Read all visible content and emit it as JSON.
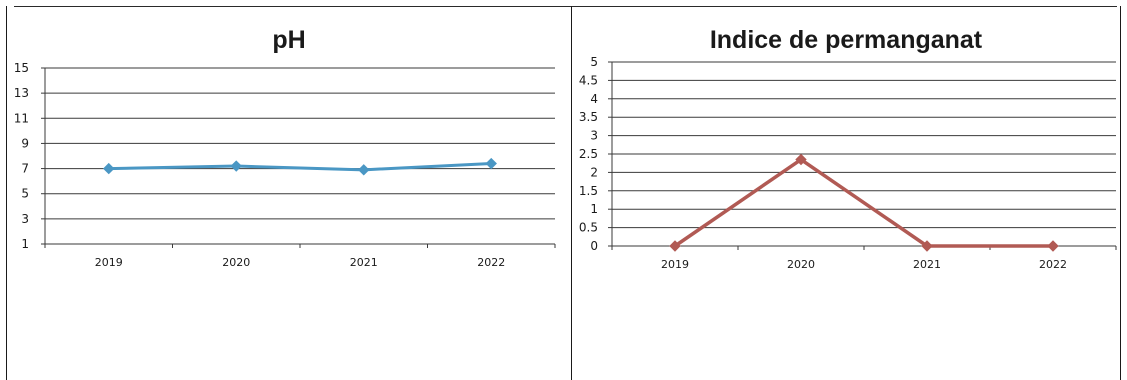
{
  "chart_data": [
    {
      "type": "line",
      "title": "pH",
      "categories": [
        "2019",
        "2020",
        "2021",
        "2022"
      ],
      "series": [
        {
          "values": [
            7.0,
            7.2,
            6.9,
            7.4
          ],
          "color": "#4a97c4"
        }
      ],
      "yticks": [
        "15",
        "13",
        "11",
        "9",
        "7",
        "5",
        "3",
        "1"
      ],
      "ylim": [
        1,
        15
      ],
      "grid": true
    },
    {
      "type": "line",
      "title": "Indice de permanganat",
      "categories": [
        "2019",
        "2020",
        "2021",
        "2022"
      ],
      "series": [
        {
          "values": [
            0,
            2.35,
            0,
            0
          ],
          "color": "#b15a54"
        }
      ],
      "yticks": [
        "5",
        "4.5",
        "4",
        "3.5",
        "3",
        "2.5",
        "2",
        "1.5",
        "1",
        "0.5",
        "0"
      ],
      "ylim": [
        0,
        5
      ],
      "grid": true
    }
  ]
}
